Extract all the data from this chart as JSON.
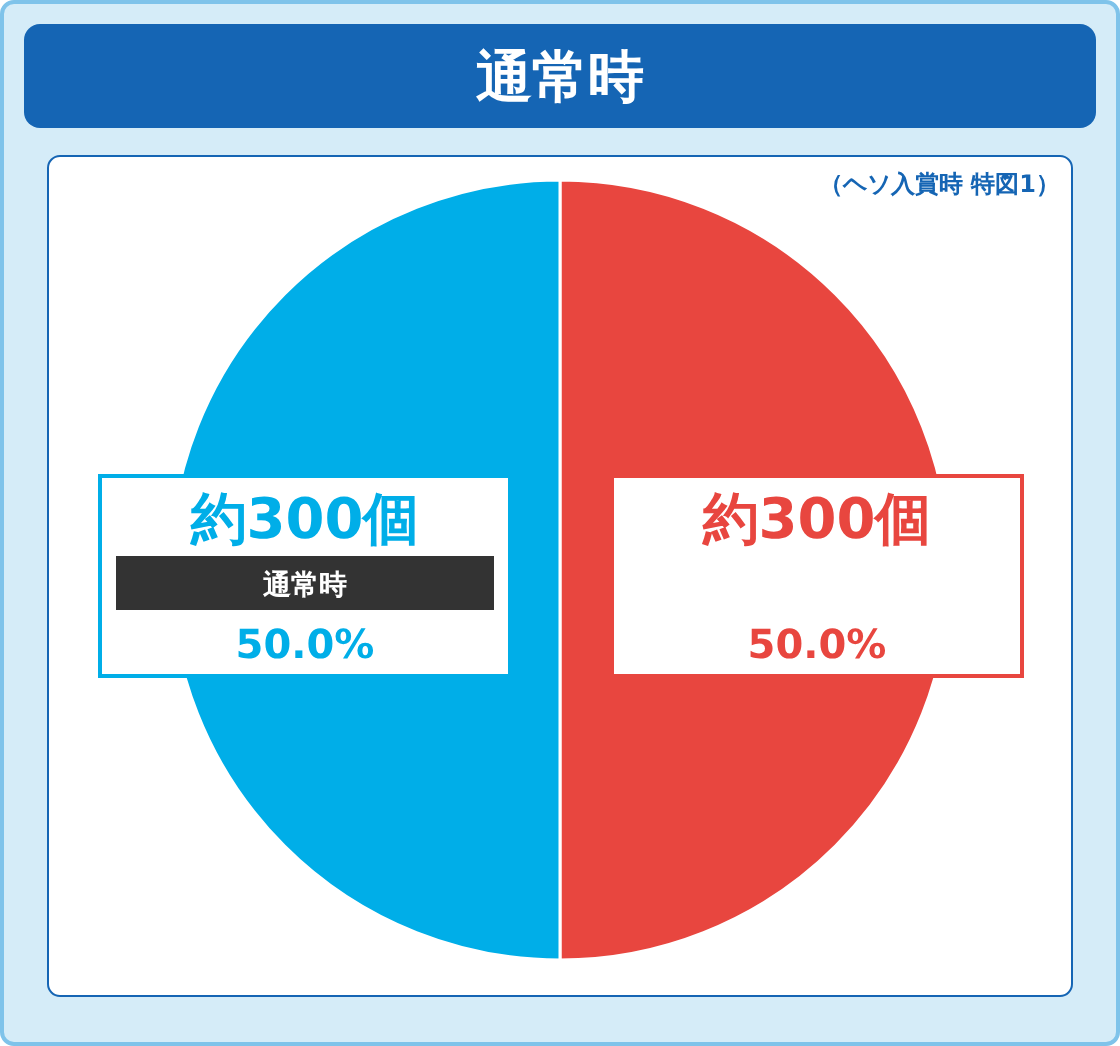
{
  "chart_data": {
    "type": "pie",
    "title": "通常時",
    "subtitle": "（ヘソ入賞時 特図1）",
    "categories": [
      null,
      "通常時"
    ],
    "values": [
      300,
      300
    ],
    "value_labels": [
      "約300個",
      "約300個"
    ],
    "annotations": [
      "50.0%",
      "50.0%"
    ],
    "colors": [
      "#e8463f",
      "#00aee8"
    ]
  }
}
